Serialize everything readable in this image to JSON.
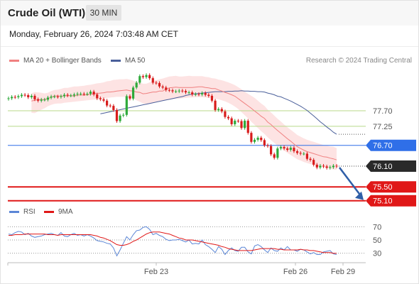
{
  "header": {
    "title": "Crude Oil (WTI)",
    "interval": "30 MIN",
    "datetime": "Monday, February 26, 2024 7:03:48 AM CET"
  },
  "legend": {
    "ma20": "MA 20 + Bollinger Bands",
    "ma50": "MA 50",
    "credit": "Research © 2024 Trading Central",
    "rsi": "RSI",
    "ma9": "9MA"
  },
  "colors": {
    "ma20": "#f08080",
    "ma50": "#4a5f9a",
    "band": "#fde3e3",
    "bull": "#2eaa3a",
    "bear": "#d81c1c",
    "resistance": "#b8d98a",
    "pivot": "#2f6fe8",
    "support": "#e01818",
    "current": "#2a2a2a",
    "arrow": "#2f5fa8",
    "rsi": "#5b86d6",
    "rsi_ma": "#e01818"
  },
  "chart_data": {
    "type": "candlestick",
    "x_ticks": [
      "Feb 23",
      "Feb 26",
      "Feb 29"
    ],
    "price_levels": {
      "resistance": [
        77.7,
        77.25
      ],
      "pivot": 76.7,
      "current": 76.1,
      "support": [
        75.5,
        75.1
      ]
    },
    "price_labels": [
      "77.70",
      "77.25",
      "76.70",
      "76.10",
      "75.50",
      "75.10"
    ],
    "close": [
      78.06,
      78.1,
      78.09,
      78.12,
      78.16,
      78.15,
      78.09,
      78.13,
      78.03,
      77.99,
      78.02,
      78.02,
      78.08,
      78.11,
      78.11,
      78.1,
      78.12,
      78.16,
      78.14,
      78.14,
      78.17,
      78.19,
      78.19,
      78.18,
      78.19,
      78.25,
      78.17,
      78.06,
      78.03,
      77.99,
      77.85,
      77.84,
      77.72,
      77.4,
      77.56,
      77.58,
      78.12,
      78.05,
      78.37,
      78.51,
      78.7,
      78.67,
      78.73,
      78.64,
      78.51,
      78.5,
      78.4,
      78.37,
      78.3,
      78.29,
      78.26,
      78.26,
      78.28,
      78.27,
      78.23,
      78.23,
      78.17,
      78.18,
      78.17,
      78.21,
      78.16,
      78.13,
      77.99,
      77.72,
      77.75,
      77.68,
      77.52,
      77.48,
      77.31,
      77.41,
      77.4,
      77.2,
      77.41,
      77.06,
      76.8,
      76.86,
      76.92,
      76.85,
      76.7,
      76.68,
      76.44,
      76.34,
      76.61,
      76.65,
      76.61,
      76.57,
      76.63,
      76.53,
      76.48,
      76.46,
      76.46,
      76.31,
      76.28,
      76.14,
      76.06,
      76.11,
      76.09,
      76.05,
      76.07,
      76.11,
      76.09
    ],
    "series": [
      {
        "name": "MA 20",
        "values": [
          77.98,
          78.0,
          78.02,
          78.02,
          78.02,
          78.05,
          78.09,
          78.13,
          78.13,
          78.12,
          78.13,
          78.13,
          78.14,
          78.12,
          78.15,
          78.15,
          78.15,
          78.16,
          78.17,
          78.19,
          78.2,
          78.21,
          78.22,
          78.24,
          78.24,
          78.25,
          78.27,
          78.28,
          78.29,
          78.3,
          78.28,
          78.27,
          78.24,
          78.23,
          78.19,
          78.2,
          78.22,
          78.24,
          78.24,
          78.27,
          78.27,
          78.32,
          78.36,
          78.37,
          78.38,
          78.37,
          78.37,
          78.37,
          78.37,
          78.37,
          78.38,
          78.39,
          78.39,
          78.37,
          78.36,
          78.34,
          78.34,
          78.3,
          78.27,
          78.23,
          78.2,
          78.16,
          78.12,
          78.05,
          77.98,
          77.91,
          77.84,
          77.77,
          77.69,
          77.62,
          77.54,
          77.48,
          77.37,
          77.3,
          77.21,
          77.13,
          77.05,
          76.97,
          76.89,
          76.82,
          76.74,
          76.66,
          76.61,
          76.56,
          76.52,
          76.49,
          76.46,
          76.43,
          76.4,
          76.37,
          76.36,
          76.33,
          76.31,
          76.28
        ]
      },
      {
        "name": "MA 50",
        "values": [
          77.61,
          77.63,
          77.65,
          77.67,
          77.69,
          77.71,
          77.73,
          77.75,
          77.77,
          77.79,
          77.81,
          77.83,
          77.85,
          77.87,
          77.89,
          77.91,
          77.93,
          77.95,
          77.97,
          77.99,
          78.01,
          78.03,
          78.05,
          78.07,
          78.09,
          78.11,
          78.14,
          78.16,
          78.18,
          78.19,
          78.2,
          78.21,
          78.22,
          78.23,
          78.24,
          78.25,
          78.25,
          78.25,
          78.25,
          78.26,
          78.26,
          78.27,
          78.27,
          78.28,
          78.27,
          78.27,
          78.26,
          78.26,
          78.25,
          78.25,
          78.24,
          78.21,
          78.19,
          78.16,
          78.12,
          78.1,
          78.06,
          78.02,
          77.98,
          77.93,
          77.88,
          77.83,
          77.77,
          77.71,
          77.63,
          77.55,
          77.47,
          77.38,
          77.31,
          77.23,
          77.16,
          77.08,
          77.02
        ]
      },
      {
        "name": "RSI",
        "values": [
          59,
          58,
          61,
          63,
          62,
          58,
          60,
          56,
          54,
          55,
          56,
          58,
          59,
          60,
          58,
          57,
          61,
          56,
          55,
          58,
          60,
          57,
          58,
          56,
          58,
          56,
          53,
          49,
          48,
          47,
          45,
          44,
          38,
          26,
          35,
          45,
          55,
          50,
          58,
          64,
          65,
          69,
          70,
          66,
          58,
          60,
          57,
          55,
          51,
          49,
          50,
          50,
          51,
          49,
          47,
          50,
          44,
          45,
          44,
          50,
          43,
          40,
          36,
          31,
          40,
          36,
          28,
          34,
          38,
          34,
          33,
          39,
          39,
          32,
          29,
          41,
          43,
          40,
          35,
          31,
          38,
          34,
          33,
          38,
          35,
          40,
          35,
          35,
          33,
          36,
          35,
          32,
          29,
          31,
          28,
          28,
          32,
          33,
          34,
          29,
          28
        ]
      },
      {
        "name": "9MA",
        "values": [
          57,
          57,
          58,
          58,
          58,
          59,
          59,
          59,
          59,
          59,
          59,
          59,
          58,
          58,
          58,
          57,
          58,
          58,
          58,
          58,
          58,
          58,
          58,
          58,
          58,
          58,
          57,
          56,
          54,
          53,
          51,
          49,
          46,
          43,
          42,
          42,
          43,
          45,
          48,
          50,
          53,
          56,
          59,
          61,
          62,
          62,
          62,
          61,
          60,
          59,
          57,
          55,
          53,
          52,
          50,
          50,
          50,
          49,
          48,
          47,
          46,
          45,
          44,
          43,
          42,
          40,
          39,
          37,
          36,
          35,
          34,
          34,
          34,
          34,
          34,
          35,
          36,
          37,
          37,
          37,
          37,
          37,
          36,
          36,
          35,
          35,
          35,
          35,
          35,
          36,
          35,
          35,
          34,
          34,
          33,
          32,
          31,
          31,
          31,
          30,
          30
        ]
      }
    ],
    "bollinger": {
      "upper": [
        78.2,
        78.24,
        78.23,
        78.22,
        78.2,
        78.22,
        78.27,
        78.3,
        78.31,
        78.33,
        78.36,
        78.36,
        78.38,
        78.4,
        78.4,
        78.41,
        78.42,
        78.44,
        78.45,
        78.47,
        78.49,
        78.5,
        78.52,
        78.55,
        78.56,
        78.59,
        78.6,
        78.61,
        78.61,
        78.62,
        78.6,
        78.57,
        78.53,
        78.51,
        78.48,
        78.48,
        78.52,
        78.56,
        78.58,
        78.61,
        78.63,
        78.66,
        78.69,
        78.7,
        78.71,
        78.69,
        78.69,
        78.7,
        78.71,
        78.7,
        78.7,
        78.7,
        78.7,
        78.68,
        78.67,
        78.64,
        78.63,
        78.6,
        78.58,
        78.55,
        78.52,
        78.48,
        78.44,
        78.38,
        78.32,
        78.25,
        78.19,
        78.13,
        78.07,
        77.99,
        77.91,
        77.84,
        77.73,
        77.65,
        77.56,
        77.47,
        77.39,
        77.3,
        77.22,
        77.15,
        77.08,
        77.0,
        76.95,
        76.9,
        76.86,
        76.83,
        76.8,
        76.77,
        76.74,
        76.71,
        76.7,
        76.67,
        76.66,
        76.62
      ],
      "lower": [
        77.64,
        77.63,
        77.68,
        77.73,
        77.77,
        77.83,
        77.87,
        77.9,
        77.91,
        77.91,
        77.93,
        77.94,
        77.95,
        77.96,
        77.97,
        77.98,
        77.99,
        78.0,
        78.01,
        78.02,
        78.03,
        78.04,
        78.05,
        78.07,
        78.08,
        78.09,
        78.1,
        78.1,
        78.1,
        78.09,
        78.08,
        78.05,
        78.0,
        77.96,
        77.91,
        77.9,
        77.91,
        77.93,
        77.95,
        77.97,
        77.98,
        78.0,
        78.02,
        78.04,
        78.05,
        78.05,
        78.06,
        78.07,
        78.08,
        78.08,
        78.09,
        78.09,
        78.09,
        78.08,
        78.07,
        78.06,
        78.05,
        78.03,
        78.0,
        77.97,
        77.93,
        77.88,
        77.82,
        77.75,
        77.66,
        77.57,
        77.48,
        77.38,
        77.29,
        77.2,
        77.11,
        77.03,
        76.93,
        76.85,
        76.77,
        76.69,
        76.62,
        76.55,
        76.48,
        76.42,
        76.36,
        76.3,
        76.26,
        76.22,
        76.19,
        76.16,
        76.13,
        76.11,
        76.09,
        76.06,
        76.05,
        76.02,
        76.0,
        75.99
      ]
    },
    "rsi_levels": [
      70,
      50,
      30
    ],
    "rsi_labels": [
      "70",
      "50",
      "30"
    ],
    "ylim": [
      74.95,
      78.95
    ],
    "rsi_ylim": [
      20,
      80
    ]
  }
}
